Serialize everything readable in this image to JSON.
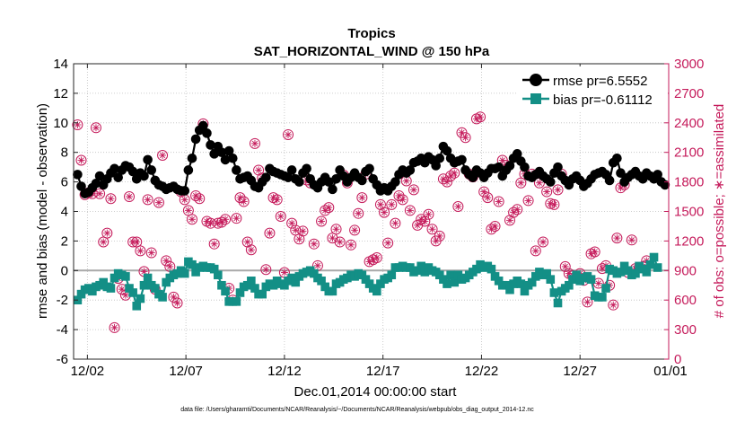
{
  "chart_data": {
    "type": "line",
    "title": "Tropics",
    "subtitle": "SAT_HORIZONTAL_WIND @ 150 hPa",
    "xlabel": "Dec.01,2014 00:00:00 start",
    "ylabel": "rmse and bias (model - observation)",
    "ylabel_right": "# of obs: o=possible; ∗=assimilated",
    "footer": "data file: /Users/gharamti/Documents/NCAR/Reanalysis/~/Documents/NCAR/Reanalysis/webpub/obs_diag_output_2014-12.nc",
    "xlim": [
      1.3,
      31.5
    ],
    "ylim": [
      -6,
      14
    ],
    "ylim_right": [
      0,
      3000
    ],
    "x_ticks": [
      2,
      7,
      12,
      17,
      22,
      27,
      32
    ],
    "x_tick_labels": [
      "12/02",
      "12/07",
      "12/12",
      "12/17",
      "12/22",
      "12/27",
      "01/01"
    ],
    "y_ticks": [
      -6,
      -4,
      -2,
      0,
      2,
      4,
      6,
      8,
      10,
      12,
      14
    ],
    "y_ticks_right": [
      0,
      300,
      600,
      900,
      1200,
      1500,
      1800,
      2100,
      2400,
      2700,
      3000
    ],
    "grid": true,
    "legend_position": "top-right",
    "colors": {
      "rmse": "#000000",
      "bias": "#138f86",
      "obs": "#c51b5b",
      "zero_line": "#a9a9a9",
      "grid": "#bfbfbf"
    },
    "series": [
      {
        "name": "rmse pr=6.5552",
        "axis": "left",
        "marker": "circle",
        "values": [
          6.5,
          5.7,
          5.2,
          5.3,
          5.6,
          5.9,
          6.4,
          5.8,
          6.2,
          6.6,
          6.9,
          6.3,
          6.8,
          7.1,
          7.0,
          6.7,
          6.2,
          6.6,
          6.4,
          7.5,
          6.8,
          6.1,
          5.8,
          5.7,
          5.5,
          5.6,
          5.7,
          5.5,
          5.4,
          5.4,
          6.8,
          7.6,
          8.9,
          9.5,
          9.8,
          9.3,
          8.5,
          7.9,
          8.4,
          8.0,
          7.5,
          8.1,
          7.6,
          6.8,
          6.2,
          6.3,
          6.4,
          6.1,
          5.7,
          5.6,
          6.0,
          6.3,
          6.9,
          6.7,
          6.6,
          6.5,
          6.4,
          6.3,
          6.8,
          6.2,
          6.0,
          6.6,
          6.9,
          6.2,
          5.8,
          5.6,
          6.0,
          6.3,
          6.0,
          5.5,
          6.2,
          6.8,
          6.4,
          6.0,
          6.3,
          6.6,
          6.3,
          6.1,
          6.7,
          6.9,
          6.2,
          5.8,
          5.4,
          5.6,
          5.4,
          5.7,
          6.0,
          6.5,
          6.8,
          6.6,
          6.8,
          7.3,
          7.4,
          7.6,
          7.3,
          7.7,
          7.5,
          7.1,
          7.6,
          8.4,
          8.1,
          7.6,
          7.3,
          7.4,
          7.5,
          6.8,
          6.5,
          6.3,
          6.8,
          6.6,
          6.3,
          6.6,
          6.9,
          6.9,
          7.0,
          6.4,
          6.8,
          7.1,
          7.6,
          7.9,
          7.4,
          7.0,
          6.4,
          6.3,
          6.5,
          6.7,
          6.4,
          6.2,
          6.0,
          6.6,
          7.0,
          6.4,
          6.1,
          5.8,
          6.2,
          6.4,
          6.1,
          5.7,
          5.9,
          6.2,
          6.5,
          6.6,
          6.7,
          6.5,
          6.1,
          7.3,
          7.6,
          6.6,
          6.0,
          6.3,
          6.5,
          6.7,
          6.4,
          6.2,
          6.6,
          6.4,
          6.2,
          6.5,
          6.0,
          5.8
        ]
      },
      {
        "name": "bias pr=-0.61112",
        "axis": "left",
        "marker": "square",
        "values": [
          -2.0,
          -1.6,
          -1.3,
          -1.2,
          -1.4,
          -1.1,
          -1.0,
          -0.8,
          -1.1,
          -1.2,
          -0.5,
          -0.2,
          -0.3,
          -0.4,
          -1.2,
          -1.5,
          -2.4,
          -1.9,
          -1.0,
          -0.5,
          -1.0,
          -1.2,
          -1.6,
          -1.8,
          -0.8,
          -0.5,
          -0.3,
          -0.2,
          0.0,
          -0.2,
          0.6,
          0.4,
          -0.1,
          0.2,
          0.3,
          0.2,
          0.2,
          0.1,
          -0.3,
          -1.0,
          -1.4,
          -2.1,
          -2.1,
          -2.1,
          -1.5,
          -1.1,
          -1.0,
          -0.7,
          -1.2,
          -1.6,
          -1.6,
          -1.1,
          -0.9,
          -1.0,
          -0.7,
          -0.9,
          -1.0,
          -0.7,
          -0.5,
          -0.8,
          -0.4,
          -0.2,
          -0.1,
          0.0,
          -0.2,
          -0.5,
          -0.7,
          -1.1,
          -1.4,
          -1.4,
          -0.9,
          -0.8,
          -0.6,
          -0.5,
          -0.3,
          -0.4,
          -0.2,
          -0.3,
          -0.6,
          -0.9,
          -1.2,
          -1.4,
          -0.9,
          -0.6,
          -0.5,
          -0.3,
          0.2,
          0.2,
          0.3,
          0.2,
          0.2,
          -0.1,
          0.0,
          0.3,
          -0.1,
          0.2,
          0.0,
          -0.1,
          -0.3,
          -0.6,
          -0.9,
          -0.3,
          -0.8,
          -0.3,
          -0.6,
          -0.5,
          -0.3,
          -0.1,
          0.1,
          0.4,
          0.2,
          0.3,
          0.1,
          -0.4,
          -0.7,
          -1.0,
          -1.0,
          -1.3,
          -0.9,
          -0.7,
          -0.9,
          -1.4,
          -1.0,
          -0.8,
          -0.4,
          -0.1,
          -0.3,
          -0.2,
          -0.6,
          -1.5,
          -2.2,
          -1.4,
          -1.2,
          -1.0,
          -0.6,
          -0.3,
          -0.7,
          -0.5,
          -0.4,
          -0.6,
          -1.7,
          -1.8,
          -1.8,
          -1.2,
          0.1,
          0.0,
          -0.2,
          -0.1,
          0.3,
          0.0,
          -0.3,
          -0.2,
          0.3,
          0.1,
          -0.1,
          0.4,
          0.9,
          0.2
        ]
      },
      {
        "name": "# of obs (possible / assimilated)",
        "axis": "right",
        "marker": "circle-asterisk",
        "values": [
          2380,
          2020,
          1670,
          1690,
          1680,
          2350,
          1680,
          1190,
          1280,
          1630,
          320,
          820,
          710,
          650,
          1650,
          1190,
          1190,
          1100,
          890,
          1620,
          1080,
          710,
          1590,
          2070,
          1000,
          940,
          630,
          570,
          1700,
          1620,
          1510,
          1420,
          1660,
          1630,
          2390,
          1400,
          1380,
          1170,
          1380,
          1390,
          1420,
          720,
          600,
          1430,
          1640,
          1600,
          1190,
          1110,
          2190,
          1920,
          1840,
          910,
          1280,
          1640,
          1620,
          1450,
          880,
          2280,
          1380,
          1310,
          1220,
          1300,
          1820,
          1790,
          1170,
          950,
          1400,
          1510,
          1540,
          1230,
          1320,
          1190,
          1870,
          1790,
          1160,
          1310,
          1480,
          1640,
          1880,
          990,
          1010,
          1030,
          1570,
          1490,
          1180,
          1570,
          1380,
          1660,
          1620,
          1810,
          1510,
          1720,
          1360,
          1420,
          1400,
          1470,
          1320,
          1200,
          1250,
          1830,
          1800,
          1860,
          1890,
          1550,
          2300,
          2250,
          1880,
          1850,
          2440,
          2460,
          1700,
          1640,
          1320,
          1350,
          1600,
          2020,
          1970,
          1410,
          1490,
          1520,
          1790,
          1880,
          1610,
          1880,
          1100,
          1790,
          1190,
          1700,
          1580,
          1570,
          1720,
          1880,
          940,
          870,
          850,
          820,
          870,
          800,
          580,
          1070,
          1090,
          770,
          920,
          950,
          750,
          550,
          1230,
          1740,
          1770,
          880,
          1210,
          920,
          930,
          940,
          1000
        ]
      }
    ]
  }
}
